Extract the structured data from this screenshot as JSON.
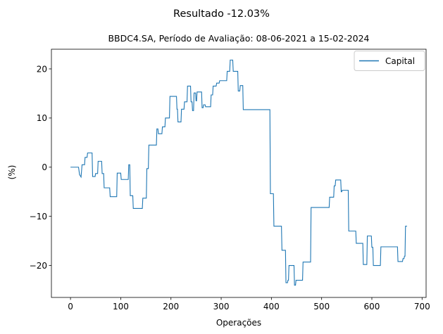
{
  "chart_data": {
    "type": "line",
    "suptitle": "Resultado -12.03%",
    "title": "BBDC4.SA, Período de Avaliação: 08-06-2021 a 15-02-2024",
    "xlabel": "Operações",
    "ylabel": "(%)",
    "xlim": [
      -38,
      708
    ],
    "ylim": [
      -26.5,
      24
    ],
    "xticks": [
      0,
      100,
      200,
      300,
      400,
      500,
      600,
      700
    ],
    "yticks": [
      -20,
      -10,
      0,
      10,
      20
    ],
    "legend": "top-right",
    "grid": false,
    "series": [
      {
        "name": "Capital",
        "color": "#1f77b4",
        "step": true,
        "points": [
          [
            0,
            0
          ],
          [
            16,
            0
          ],
          [
            18,
            -1.5
          ],
          [
            21,
            -2
          ],
          [
            23,
            0.5
          ],
          [
            28,
            0.5
          ],
          [
            29,
            2
          ],
          [
            33,
            2
          ],
          [
            34,
            2.9
          ],
          [
            43,
            2.9
          ],
          [
            44,
            -1.9
          ],
          [
            49,
            -1.9
          ],
          [
            50,
            -1.3
          ],
          [
            54,
            -1.3
          ],
          [
            55,
            1.2
          ],
          [
            62,
            1.2
          ],
          [
            63,
            -1.3
          ],
          [
            66,
            -1.3
          ],
          [
            67,
            -4.2
          ],
          [
            78,
            -4.2
          ],
          [
            79,
            -6
          ],
          [
            92,
            -6
          ],
          [
            93,
            -1.2
          ],
          [
            100,
            -1.2
          ],
          [
            101,
            -2.5
          ],
          [
            115,
            -2.5
          ],
          [
            116,
            0.5
          ],
          [
            118,
            0.5
          ],
          [
            119,
            -5.8
          ],
          [
            124,
            -5.8
          ],
          [
            125,
            -8.4
          ],
          [
            143,
            -8.4
          ],
          [
            144,
            -6.3
          ],
          [
            151,
            -6.3
          ],
          [
            152,
            -0.3
          ],
          [
            155,
            -0.3
          ],
          [
            156,
            4.5
          ],
          [
            171,
            4.5
          ],
          [
            172,
            7.8
          ],
          [
            174,
            7.8
          ],
          [
            175,
            6.8
          ],
          [
            182,
            6.8
          ],
          [
            183,
            8.2
          ],
          [
            188,
            8.2
          ],
          [
            189,
            10
          ],
          [
            197,
            10
          ],
          [
            198,
            14.4
          ],
          [
            211,
            14.4
          ],
          [
            212,
            11.8
          ],
          [
            213,
            11.8
          ],
          [
            214,
            9.2
          ],
          [
            220,
            9.2
          ],
          [
            221,
            11.8
          ],
          [
            226,
            11.8
          ],
          [
            227,
            13.3
          ],
          [
            232,
            13.3
          ],
          [
            233,
            16.5
          ],
          [
            239,
            16.5
          ],
          [
            240,
            13.3
          ],
          [
            242,
            13.3
          ],
          [
            243,
            11.5
          ],
          [
            245,
            11.5
          ],
          [
            246,
            15.1
          ],
          [
            249,
            15.1
          ],
          [
            250,
            13.5
          ],
          [
            251,
            13.5
          ],
          [
            252,
            15.3
          ],
          [
            261,
            15.3
          ],
          [
            262,
            12.1
          ],
          [
            264,
            12.1
          ],
          [
            265,
            12.7
          ],
          [
            268,
            12.7
          ],
          [
            269,
            12.3
          ],
          [
            279,
            12.3
          ],
          [
            280,
            14.7
          ],
          [
            283,
            14.7
          ],
          [
            284,
            16.5
          ],
          [
            290,
            16.5
          ],
          [
            291,
            17.1
          ],
          [
            296,
            17.1
          ],
          [
            297,
            17.6
          ],
          [
            311,
            17.6
          ],
          [
            312,
            19.5
          ],
          [
            317,
            19.5
          ],
          [
            318,
            21.8
          ],
          [
            323,
            21.8
          ],
          [
            324,
            19.5
          ],
          [
            333,
            19.5
          ],
          [
            334,
            15.5
          ],
          [
            337,
            15.5
          ],
          [
            338,
            16.6
          ],
          [
            343,
            16.6
          ],
          [
            344,
            11.7
          ],
          [
            397,
            11.7
          ],
          [
            398,
            -5.4
          ],
          [
            404,
            -5.4
          ],
          [
            405,
            -12
          ],
          [
            420,
            -12
          ],
          [
            421,
            -16.9
          ],
          [
            428,
            -16.9
          ],
          [
            429,
            -23.5
          ],
          [
            432,
            -23.5
          ],
          [
            433,
            -23
          ],
          [
            434,
            -23
          ],
          [
            435,
            -20
          ],
          [
            445,
            -20
          ],
          [
            446,
            -24
          ],
          [
            448,
            -24
          ],
          [
            449,
            -23
          ],
          [
            462,
            -23
          ],
          [
            463,
            -19.3
          ],
          [
            478,
            -19.3
          ],
          [
            479,
            -8.2
          ],
          [
            515,
            -8.2
          ],
          [
            516,
            -6.1
          ],
          [
            524,
            -6.1
          ],
          [
            525,
            -3.8
          ],
          [
            527,
            -3.8
          ],
          [
            528,
            -2.6
          ],
          [
            538,
            -2.6
          ],
          [
            539,
            -5
          ],
          [
            540,
            -5
          ],
          [
            541,
            -4.7
          ],
          [
            553,
            -4.7
          ],
          [
            554,
            -13
          ],
          [
            568,
            -13
          ],
          [
            569,
            -15.5
          ],
          [
            582,
            -15.5
          ],
          [
            583,
            -19.8
          ],
          [
            590,
            -19.8
          ],
          [
            591,
            -14
          ],
          [
            599,
            -14
          ],
          [
            600,
            -16.3
          ],
          [
            602,
            -16.3
          ],
          [
            603,
            -20
          ],
          [
            617,
            -20
          ],
          [
            618,
            -16.2
          ],
          [
            651,
            -16.2
          ],
          [
            652,
            -19.2
          ],
          [
            661,
            -19.2
          ],
          [
            662,
            -18.6
          ],
          [
            664,
            -18.6
          ],
          [
            665,
            -18.1
          ],
          [
            666,
            -18.1
          ],
          [
            667,
            -12
          ],
          [
            670,
            -12
          ]
        ]
      }
    ]
  }
}
